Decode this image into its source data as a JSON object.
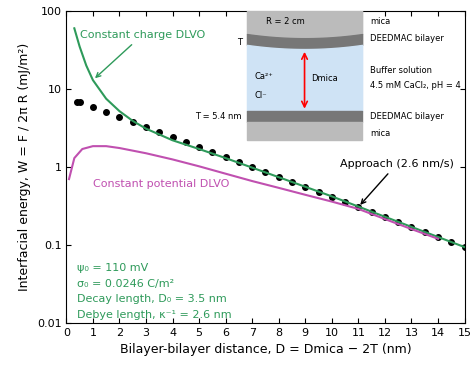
{
  "chart_data": {
    "type": "line",
    "xlabel": "Bilayer-bilayer distance, D = Dmica − 2T (nm)",
    "ylabel": "Interfacial energy, W = F / 2π R (mJ/m²)",
    "xlim": [
      0,
      15
    ],
    "ylim": [
      0.01,
      100
    ],
    "xticks": [
      0,
      1,
      2,
      3,
      4,
      5,
      6,
      7,
      8,
      9,
      10,
      11,
      12,
      13,
      14,
      15
    ],
    "yticks": [
      0.01,
      0.1,
      1,
      10,
      100
    ],
    "log": "y",
    "grid": false,
    "series": [
      {
        "name": "Approach (2.6 nm/s)",
        "color": "#000000",
        "marker": "o",
        "line_style": "none",
        "x": [
          0.4,
          0.5,
          1,
          1.5,
          2,
          2.5,
          3,
          3.5,
          4,
          4.5,
          5,
          5.5,
          6,
          6.5,
          7,
          7.5,
          8,
          8.5,
          9,
          9.5,
          10,
          10.5,
          11,
          11.5,
          12,
          12.5,
          13,
          13.5,
          14,
          14.5,
          15
        ],
        "values": [
          6.9,
          6.73,
          5.83,
          5.04,
          4.36,
          3.77,
          3.26,
          2.79,
          2.41,
          2.08,
          1.79,
          1.55,
          1.34,
          1.15,
          0.995,
          0.859,
          0.742,
          0.64,
          0.552,
          0.477,
          0.412,
          0.355,
          0.307,
          0.265,
          0.229,
          0.197,
          0.17,
          0.147,
          0.127,
          0.109,
          0.094
        ]
      },
      {
        "name": "Constant charge DLVO",
        "color": "#2e9a5a",
        "marker": "none",
        "line_style": "solid",
        "x": [
          0.3,
          0.5,
          0.75,
          1,
          1.5,
          2,
          2.5,
          3,
          4,
          5,
          6,
          8,
          10,
          12,
          15
        ],
        "values": [
          60,
          35,
          20,
          13,
          7.5,
          5.2,
          3.9,
          3.1,
          2.2,
          1.7,
          1.3,
          0.74,
          0.42,
          0.23,
          0.094
        ]
      },
      {
        "name": "Constant potential DLVO",
        "color": "#c050b0",
        "marker": "none",
        "line_style": "solid",
        "x": [
          0.1,
          0.3,
          0.6,
          1,
          1.5,
          2,
          3,
          4,
          5,
          6,
          7,
          8,
          9,
          10,
          11,
          12,
          13,
          14
        ],
        "values": [
          0.7,
          1.3,
          1.7,
          1.85,
          1.85,
          1.75,
          1.5,
          1.25,
          1.02,
          0.82,
          0.66,
          0.54,
          0.44,
          0.36,
          0.29,
          0.215,
          0.16,
          0.12
        ]
      }
    ],
    "parameters": {
      "color": "#2e9a5a",
      "texts": [
        "ψ₀ = 110 mV",
        "σ₀ = 0.0246 C/m²",
        "Decay length, D₀ = 3.5 nm",
        "Debye length, κ⁻¹ = 2.6 nm"
      ]
    },
    "inset": {
      "radius": "R = 2 cm",
      "top_mica": "mica",
      "top_bilayer": "DEEDMAC bilayer",
      "solution": "Buffer solution",
      "conditions": "4.5 mM CaCl₂, pH = 4",
      "bottom_bilayer": "DEEDMAC bilayer",
      "bottom_mica": "mica",
      "thickness_top": "T",
      "thickness": "T = 5.4 nm",
      "cation": "Ca²⁺",
      "anion": "Cl⁻",
      "gap": "Dmica"
    }
  }
}
